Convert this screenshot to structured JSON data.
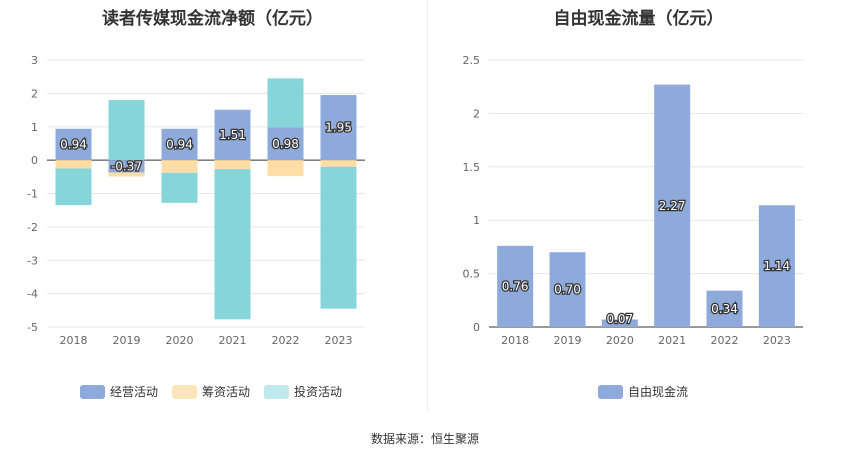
{
  "source_prefix": "数据来源：",
  "source_name": "恒生聚源",
  "colors": {
    "operating": "#8eaadb",
    "financing": "#ffdda6",
    "investing": "#86d5d9",
    "investing_legend": "#bfe9ec",
    "fcf": "#8eaadb"
  },
  "chart_data": [
    {
      "type": "bar",
      "stacked": true,
      "title": "读者传媒现金流净额（亿元）",
      "categories": [
        "2018",
        "2019",
        "2020",
        "2021",
        "2022",
        "2023"
      ],
      "series": [
        {
          "name": "经营活动",
          "values": [
            0.94,
            -0.37,
            0.94,
            1.51,
            0.98,
            1.95
          ]
        },
        {
          "name": "筹资活动",
          "values": [
            -0.25,
            -0.12,
            -0.38,
            -0.27,
            -0.48,
            -0.2
          ]
        },
        {
          "name": "投资活动",
          "values": [
            -1.1,
            1.8,
            -0.9,
            -4.5,
            1.47,
            -4.25
          ]
        }
      ],
      "data_labels_series": "经营活动",
      "data_labels": [
        "0.94",
        "-0.37",
        "0.94",
        "1.51",
        "0.98",
        "1.95"
      ],
      "ylim": [
        -5,
        3
      ],
      "yticks": [
        3,
        2,
        1,
        0,
        -1,
        -2,
        -3,
        -4,
        -5
      ],
      "grid": true,
      "legend": "bottom"
    },
    {
      "type": "bar",
      "title": "自由现金流量（亿元）",
      "categories": [
        "2018",
        "2019",
        "2020",
        "2021",
        "2022",
        "2023"
      ],
      "series": [
        {
          "name": "自由现金流",
          "values": [
            0.76,
            0.7,
            0.07,
            2.27,
            0.34,
            1.14
          ]
        }
      ],
      "data_labels": [
        "0.76",
        "0.70",
        "0.07",
        "2.27",
        "0.34",
        "1.14"
      ],
      "ylim": [
        0,
        2.5
      ],
      "yticks": [
        "2.5",
        "2",
        "1.5",
        "1",
        "0.5",
        "0"
      ],
      "grid": true,
      "legend": "bottom"
    }
  ]
}
